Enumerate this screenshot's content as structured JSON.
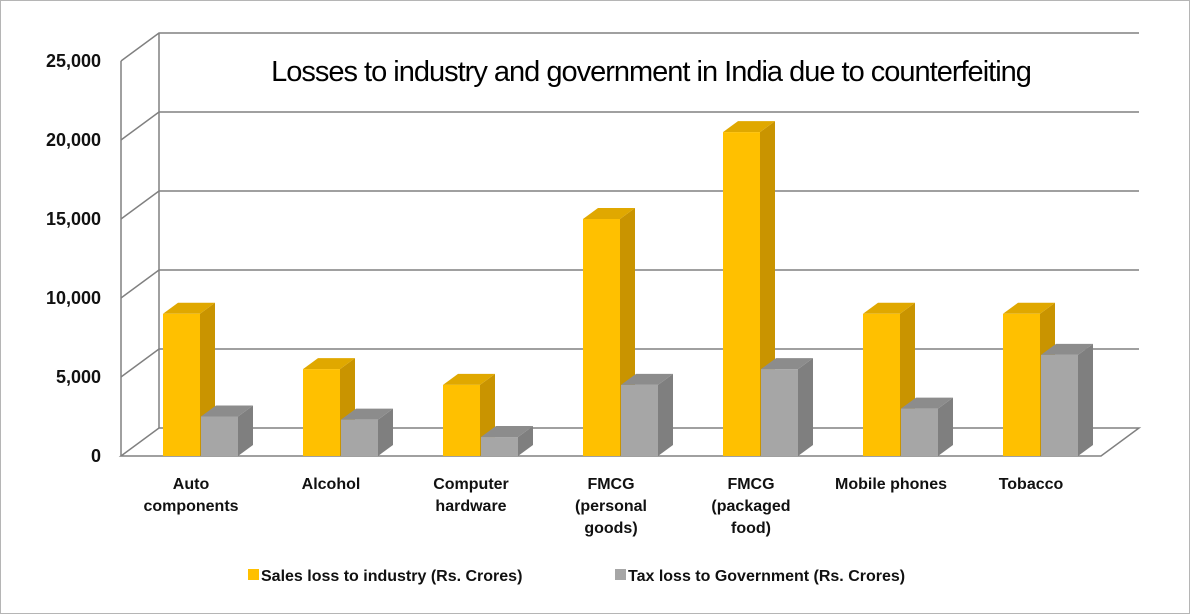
{
  "chart_data": {
    "type": "bar",
    "title": "Losses to industry and government in India due to counterfeiting",
    "xlabel": "",
    "ylabel": "",
    "ylim": [
      0,
      25000
    ],
    "yticks": [
      "25,000",
      "20,000",
      "15,000",
      "10,000",
      "5,000",
      "0"
    ],
    "categories": [
      [
        "Auto",
        "components"
      ],
      [
        "Alcohol"
      ],
      [
        "Computer",
        "hardware"
      ],
      [
        "FMCG",
        "(personal",
        "goods)"
      ],
      [
        "FMCG",
        "(packaged",
        "food)"
      ],
      [
        "Mobile phones"
      ],
      [
        "Tobacco"
      ]
    ],
    "series": [
      {
        "name": "Sales loss to industry (Rs. Crores)",
        "color": "#ffc000",
        "side_color": "#c99400",
        "top_color": "#e0a800",
        "values": [
          9000,
          5500,
          4500,
          15000,
          20500,
          9000,
          9000
        ]
      },
      {
        "name": "Tax loss to Government (Rs. Crores)",
        "color": "#a6a6a6",
        "side_color": "#7f7f7f",
        "top_color": "#8c8c8c",
        "values": [
          2500,
          2300,
          1200,
          4500,
          5500,
          3000,
          6400
        ]
      }
    ],
    "grid": true,
    "legend_position": "bottom"
  }
}
